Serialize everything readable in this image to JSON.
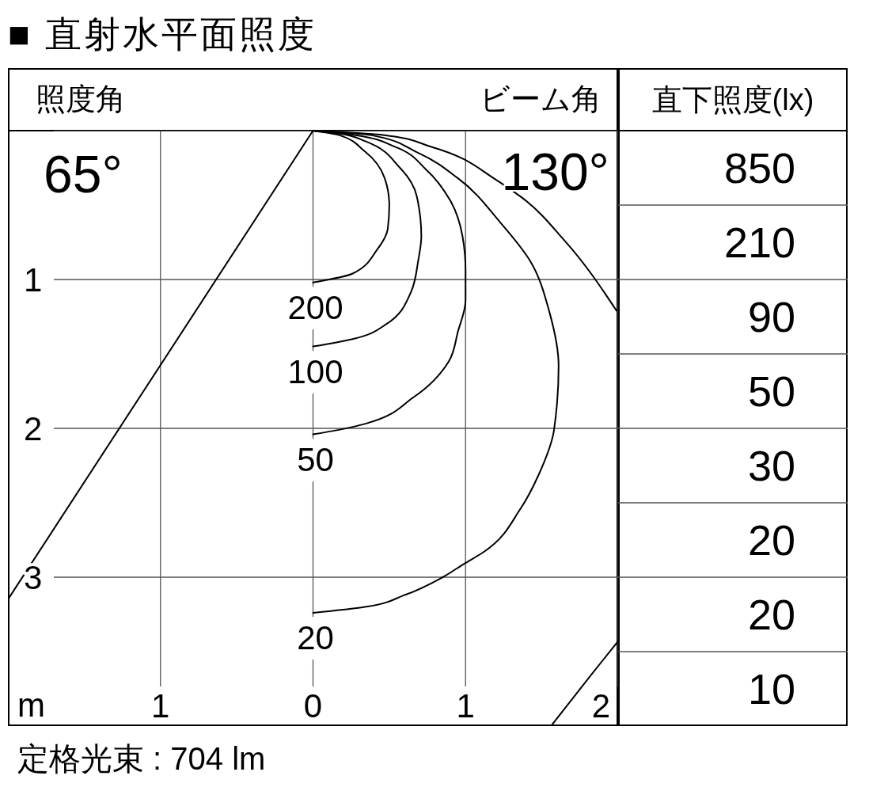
{
  "chart_data": [
    {
      "type": "line",
      "title": "■ 直射水平面照度",
      "xlabel": "m",
      "annotations": [
        "照度角",
        "65°",
        "ビーム角",
        "130°",
        "定格光束 : 704 lm"
      ],
      "series": [
        {
          "name": "200",
          "color": "#000000",
          "x": [
            0,
            0.17,
            0.34,
            0.47,
            0.5,
            0.49,
            0.42,
            0.26,
            0
          ],
          "values": [
            0,
            0.03,
            0.14,
            0.32,
            0.5,
            0.66,
            0.8,
            0.96,
            1.02
          ]
        },
        {
          "name": "100",
          "color": "#000000",
          "x": [
            0,
            0.17,
            0.34,
            0.57,
            0.68,
            0.71,
            0.69,
            0.64,
            0.48,
            0.26,
            0
          ],
          "values": [
            0,
            0.02,
            0.07,
            0.25,
            0.44,
            0.71,
            0.87,
            1.09,
            1.3,
            1.4,
            1.45
          ]
        },
        {
          "name": "50",
          "color": "#000000",
          "x": [
            0,
            0.28,
            0.54,
            0.74,
            0.9,
            0.98,
            1.0,
            1.0,
            0.95,
            0.89,
            0.66,
            0.34,
            0.17,
            0
          ],
          "values": [
            0,
            0.03,
            0.11,
            0.26,
            0.47,
            0.71,
            0.94,
            1.14,
            1.35,
            1.55,
            1.79,
            1.97,
            2.01,
            2.04
          ]
        },
        {
          "name": "20",
          "color": "#000000",
          "x": [
            0,
            0.38,
            0.69,
            0.95,
            1.23,
            1.42,
            1.55,
            1.61,
            1.58,
            1.48,
            1.36,
            1.12,
            0.99,
            0.85,
            0.6,
            0.34,
            0
          ],
          "values": [
            0,
            0.03,
            0.15,
            0.32,
            0.62,
            0.87,
            1.22,
            1.58,
            2.01,
            2.31,
            2.54,
            2.83,
            2.91,
            3.0,
            3.12,
            3.2,
            3.24
          ]
        },
        {
          "color": "#000000",
          "x": [
            0,
            0.47,
            0.78,
            1.2,
            1.37,
            1.65,
            1.99
          ],
          "values": [
            0,
            0.03,
            0.11,
            0.33,
            0.45,
            0.74,
            1.21
          ]
        },
        {
          "color": "#000000",
          "x": [
            2,
            1.82,
            1.56
          ],
          "values": [
            3.43,
            3.66,
            4.0
          ]
        },
        {
          "color": "#000000",
          "x": [
            0,
            -2
          ],
          "values": [
            0,
            3.15
          ]
        }
      ],
      "xlim": [
        -2,
        2
      ],
      "xticks": [
        {
          "value": -1,
          "label": "1"
        },
        0,
        1,
        2
      ],
      "ylim": [
        4,
        0
      ],
      "yticks": [
        1,
        2,
        3
      ],
      "grid": true,
      "marker": "none",
      "line_style": "solid"
    },
    {
      "type": "other",
      "title": "直下照度(lx)",
      "values": [
        850,
        210,
        90,
        50,
        30,
        20,
        20,
        10
      ],
      "data_labels": true
    }
  ]
}
